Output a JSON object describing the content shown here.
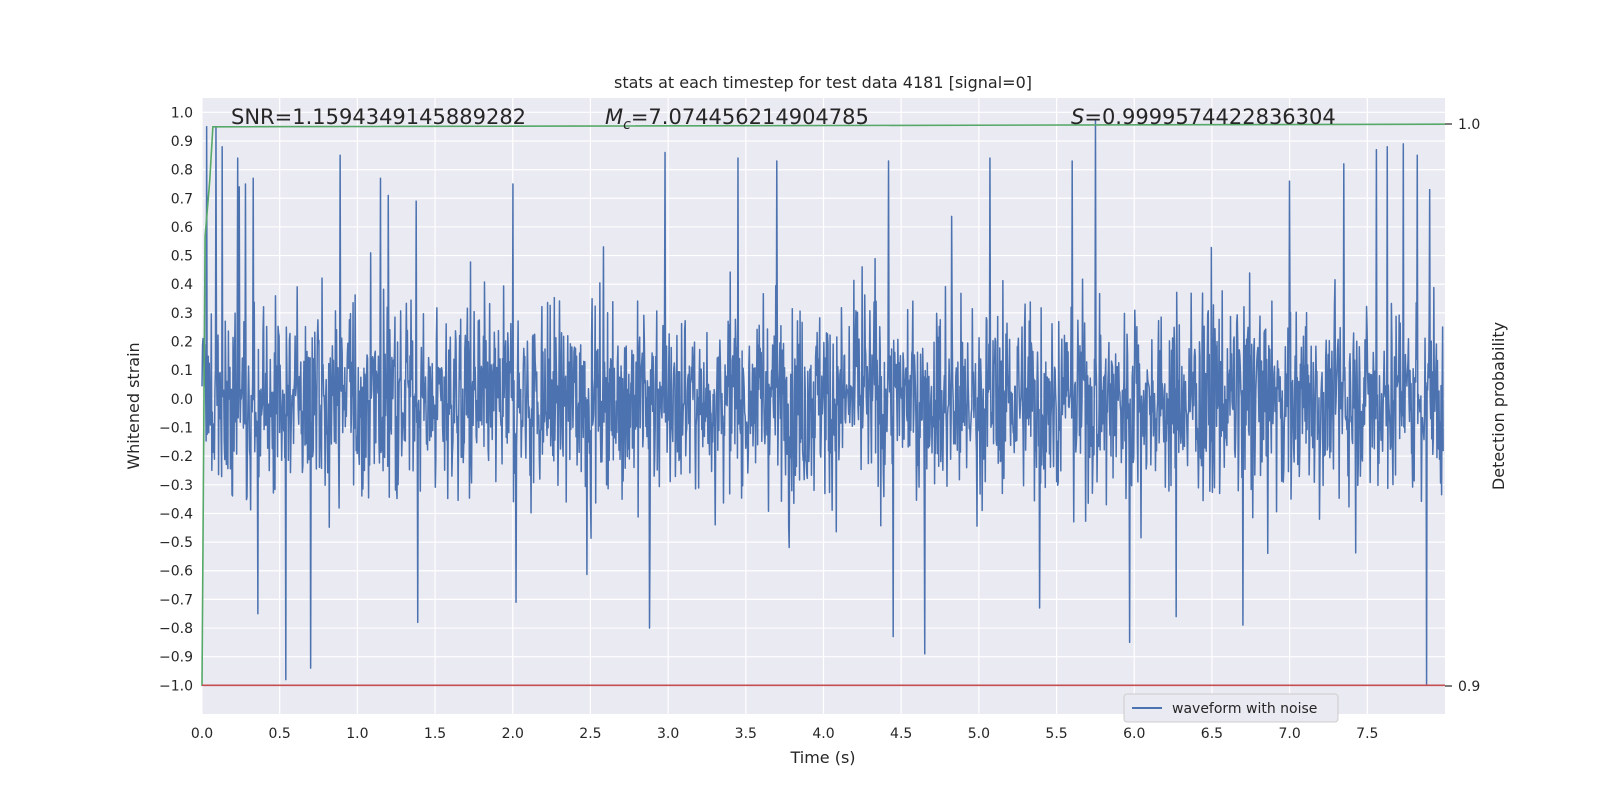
{
  "chart_data": {
    "type": "line",
    "title": "stats at each timestep for test data 4181 [signal=0]",
    "xlabel": "Time (s)",
    "ylabel": "Whitened strain",
    "y2label": "Detection probability",
    "xlim": [
      0,
      8
    ],
    "ylim": [
      -1.1,
      1.05
    ],
    "y2lim": [
      0.9,
      1.0
    ],
    "xticks": [
      "0.0",
      "0.5",
      "1.0",
      "1.5",
      "2.0",
      "2.5",
      "3.0",
      "3.5",
      "4.0",
      "4.5",
      "5.0",
      "5.5",
      "6.0",
      "6.5",
      "7.0",
      "7.5"
    ],
    "yticks": [
      "1.0",
      "0.9",
      "0.8",
      "0.7",
      "0.6",
      "0.5",
      "0.4",
      "0.3",
      "0.2",
      "0.1",
      "0.0",
      "−0.1",
      "−0.2",
      "−0.3",
      "−0.4",
      "−0.5",
      "−0.6",
      "−0.7",
      "−0.8",
      "−0.9",
      "−1.0"
    ],
    "y2ticks": [
      "1.0",
      "0.9"
    ],
    "annotations": {
      "snr": "SNR=1.1594349145889282",
      "mc_symbol": "M",
      "mc_subscript": "c",
      "mc_value": "=7.074456214904785",
      "s_symbol": "S",
      "s_value": "=0.9999574422836304"
    },
    "legend": {
      "position": "lower-right"
    },
    "grid": true,
    "series": [
      {
        "name": "waveform with noise",
        "axis": "left",
        "color": "#4c72b0",
        "noise": {
          "t_start": 0,
          "t_end": 8,
          "samples": 2400,
          "core_amplitude": 0.42,
          "spike_extent": [
            -1.0,
            0.97
          ]
        },
        "spikes": [
          [
            0.03,
            0.95
          ],
          [
            0.09,
            0.95
          ],
          [
            0.13,
            0.88
          ],
          [
            0.23,
            0.84
          ],
          [
            0.24,
            0.74
          ],
          [
            0.28,
            0.75
          ],
          [
            0.33,
            0.77
          ],
          [
            0.36,
            -0.75
          ],
          [
            0.54,
            -0.98
          ],
          [
            0.7,
            -0.94
          ],
          [
            0.89,
            0.85
          ],
          [
            1.15,
            0.77
          ],
          [
            1.2,
            0.71
          ],
          [
            1.38,
            0.69
          ],
          [
            1.39,
            -0.78
          ],
          [
            2.0,
            0.75
          ],
          [
            2.02,
            -0.71
          ],
          [
            2.88,
            -0.8
          ],
          [
            2.98,
            0.86
          ],
          [
            3.45,
            0.84
          ],
          [
            3.7,
            0.83
          ],
          [
            4.42,
            0.83
          ],
          [
            4.45,
            -0.83
          ],
          [
            4.65,
            -0.89
          ],
          [
            5.07,
            0.84
          ],
          [
            5.39,
            -0.73
          ],
          [
            5.6,
            0.83
          ],
          [
            5.75,
            0.97
          ],
          [
            5.97,
            -0.85
          ],
          [
            6.27,
            -0.76
          ],
          [
            6.7,
            -0.79
          ],
          [
            7.0,
            0.76
          ],
          [
            7.35,
            0.82
          ],
          [
            7.56,
            0.87
          ],
          [
            7.63,
            0.88
          ],
          [
            7.73,
            0.89
          ],
          [
            7.82,
            0.85
          ],
          [
            7.88,
            -1.0
          ],
          [
            7.9,
            0.73
          ]
        ]
      },
      {
        "name": "",
        "axis": "right",
        "color": "#55a868",
        "x": [
          0.0,
          0.02,
          0.05,
          0.07,
          8.0
        ],
        "y": [
          0.9,
          0.98,
          0.99,
          0.9995,
          0.99996
        ]
      },
      {
        "name": "",
        "axis": "left",
        "color": "#c44e52",
        "x": [
          0.0,
          8.0
        ],
        "y": [
          -1.0,
          -1.0
        ]
      }
    ]
  }
}
